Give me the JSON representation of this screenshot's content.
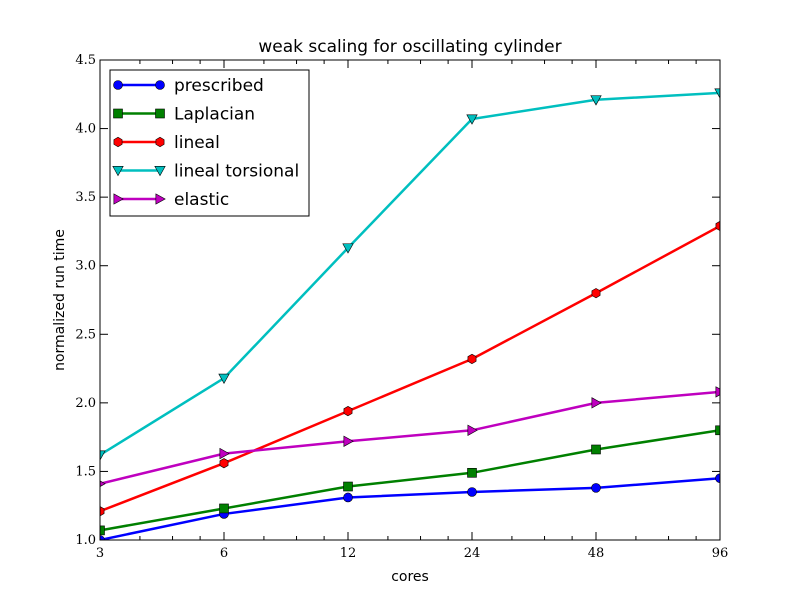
{
  "chart_data": {
    "type": "line",
    "title": "weak scaling for oscillating cylinder",
    "xlabel": "cores",
    "ylabel": "normalized run time",
    "x_scale": "log2",
    "x": [
      3,
      6,
      12,
      24,
      48,
      96
    ],
    "x_tick_labels": [
      "3",
      "6",
      "12",
      "24",
      "48",
      "96"
    ],
    "xlim": [
      3,
      96
    ],
    "ylim": [
      1.0,
      4.5
    ],
    "y_ticks": [
      1.0,
      1.5,
      2.0,
      2.5,
      3.0,
      3.5,
      4.0,
      4.5
    ],
    "y_tick_labels": [
      "1.0",
      "1.5",
      "2.0",
      "2.5",
      "3.0",
      "3.5",
      "4.0",
      "4.5"
    ],
    "grid": false,
    "legend_position": "top-left",
    "series": [
      {
        "name": "prescribed",
        "color": "#0000ff",
        "marker": "circle",
        "values": [
          1.0,
          1.19,
          1.31,
          1.35,
          1.38,
          1.45
        ]
      },
      {
        "name": "Laplacian",
        "color": "#008000",
        "marker": "square",
        "values": [
          1.07,
          1.23,
          1.39,
          1.49,
          1.66,
          1.8
        ]
      },
      {
        "name": "lineal",
        "color": "#ff0000",
        "marker": "hexagon",
        "values": [
          1.21,
          1.56,
          1.94,
          2.32,
          2.8,
          3.29
        ]
      },
      {
        "name": "lineal torsional",
        "color": "#00bfbf",
        "marker": "triangle-down",
        "values": [
          1.62,
          2.18,
          3.13,
          4.07,
          4.21,
          4.26
        ]
      },
      {
        "name": "elastic",
        "color": "#bf00bf",
        "marker": "triangle-right",
        "values": [
          1.41,
          1.63,
          1.72,
          1.8,
          2.0,
          2.08
        ]
      }
    ]
  }
}
